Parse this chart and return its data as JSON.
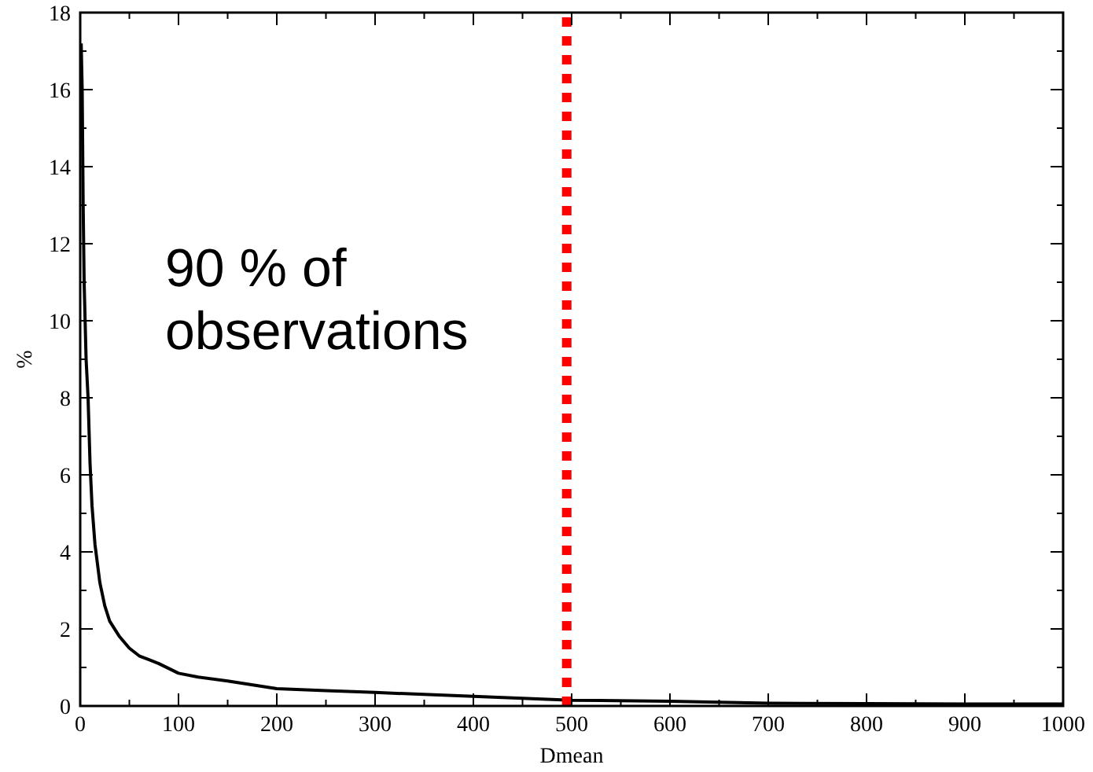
{
  "chart_data": {
    "type": "line",
    "xlabel": "Dmean",
    "ylabel": "%",
    "xlim": [
      0,
      1000
    ],
    "ylim": [
      0,
      18
    ],
    "xticks": [
      0,
      100,
      200,
      300,
      400,
      500,
      600,
      700,
      800,
      900,
      1000
    ],
    "yticks": [
      0,
      2,
      4,
      6,
      8,
      10,
      12,
      14,
      16,
      18
    ],
    "series": [
      {
        "color": "#000000",
        "x": [
          1,
          2,
          3,
          4,
          6,
          8,
          10,
          12,
          15,
          20,
          25,
          30,
          40,
          50,
          60,
          70,
          80,
          100,
          120,
          150,
          200,
          250,
          300,
          400,
          500,
          600,
          700,
          800,
          900,
          1000
        ],
        "values": [
          17.2,
          16,
          13,
          11,
          9,
          8,
          6.3,
          5.2,
          4.2,
          3.2,
          2.6,
          2.2,
          1.8,
          1.5,
          1.3,
          1.2,
          1.1,
          0.85,
          0.75,
          0.65,
          0.45,
          0.4,
          0.35,
          0.25,
          0.15,
          0.12,
          0.07,
          0.06,
          0.05,
          0.05
        ]
      }
    ],
    "ref_lines": [
      {
        "axis": "x",
        "value": 495,
        "color": "#ff0000",
        "line_style": "dotted"
      }
    ],
    "annotations": [
      "90 % of observations"
    ],
    "grid": false,
    "line_style": "solid"
  }
}
